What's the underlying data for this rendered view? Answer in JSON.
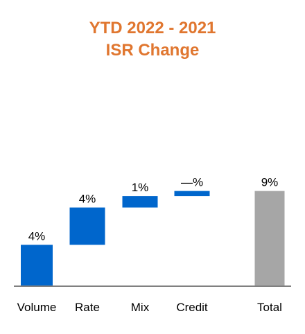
{
  "colors": {
    "title": "#E0762F",
    "bar": "#0066CC",
    "total": "#A6A6A6",
    "axis": "#808080"
  },
  "chart_data": {
    "type": "bar",
    "subtype": "waterfall",
    "title_lines": [
      "YTD 2022 - 2021",
      "ISR Change"
    ],
    "categories": [
      "Volume",
      "Rate",
      "Mix",
      "Credit",
      "Total"
    ],
    "values": [
      4.0,
      3.6,
      1.1,
      0.5,
      9.2
    ],
    "total_flags": [
      false,
      false,
      false,
      false,
      true
    ],
    "data_labels": [
      "4%",
      "4%",
      "1%",
      "—%",
      "9%"
    ],
    "ylim": [
      0,
      10.5
    ],
    "grid": false,
    "legend": "none"
  }
}
